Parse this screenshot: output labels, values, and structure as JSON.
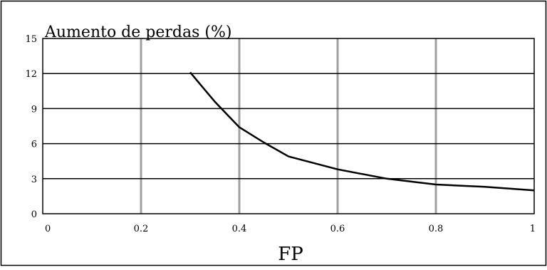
{
  "chart_data": {
    "type": "line",
    "title": "Aumento de perdas (%)",
    "xlabel": "FP",
    "ylabel": "",
    "xlim": [
      0,
      1
    ],
    "ylim": [
      0,
      15
    ],
    "x_ticks": [
      0,
      0.2,
      0.4,
      0.6,
      0.8,
      1
    ],
    "x_tick_labels": [
      "0",
      "0.2",
      "0.4",
      "0.6",
      "0.8",
      "1"
    ],
    "y_ticks": [
      0,
      3,
      6,
      9,
      12,
      15
    ],
    "y_tick_labels": [
      "0",
      "3",
      "6",
      "9",
      "12",
      "15"
    ],
    "grid": true,
    "legend": "none",
    "series": [
      {
        "x": [
          0.3,
          0.35,
          0.4,
          0.45,
          0.5,
          0.6,
          0.7,
          0.8,
          0.9,
          1.0
        ],
        "y": [
          12.1,
          9.6,
          7.4,
          6.1,
          4.9,
          3.8,
          3.0,
          2.5,
          2.3,
          2.0
        ],
        "color": "#000000"
      }
    ],
    "colors": {
      "line": "#000000",
      "vertical_grid": "#a0a0a0",
      "horizontal_grid": "#000000",
      "frame": "#000000"
    }
  }
}
